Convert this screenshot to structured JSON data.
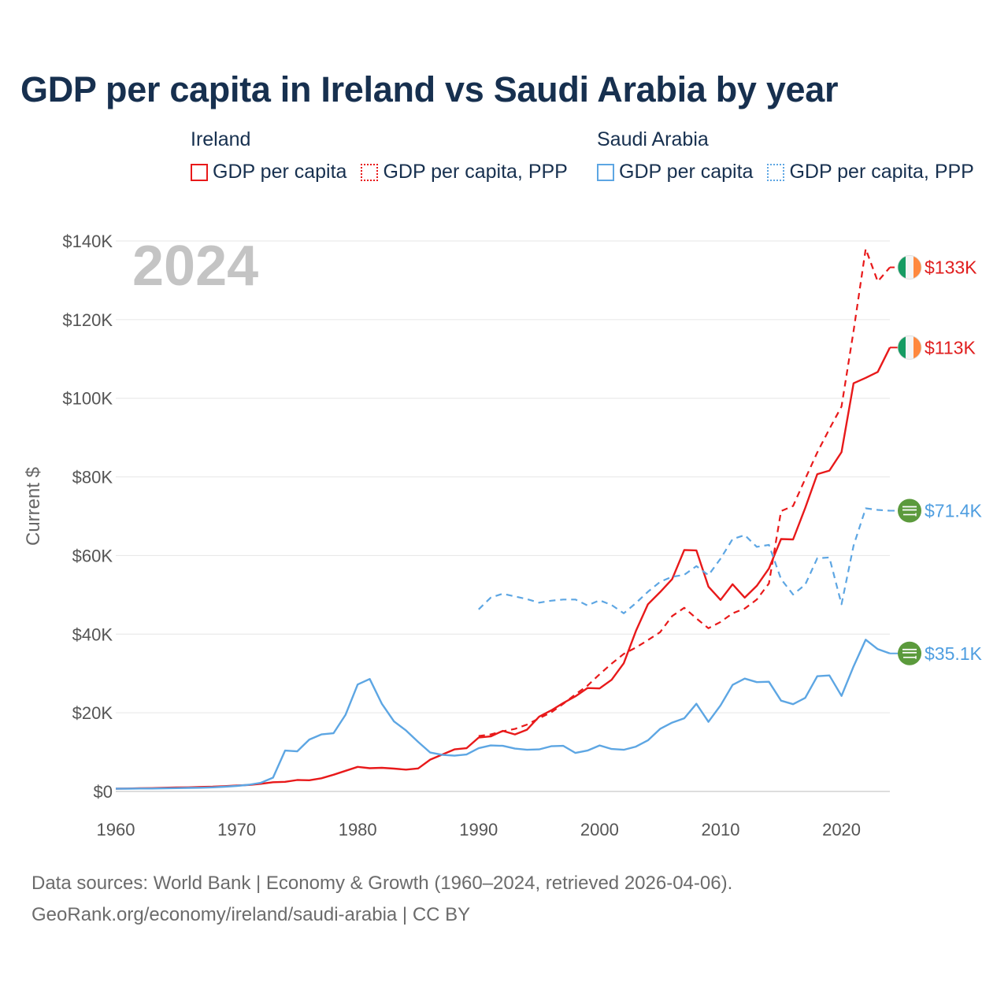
{
  "title": "GDP per capita in Ireland vs Saudi Arabia by year",
  "legend": {
    "groups": [
      {
        "country": "Ireland",
        "items": [
          {
            "label": "GDP per capita",
            "color": "#e8191a",
            "style": "solid"
          },
          {
            "label": "GDP per capita, PPP",
            "color": "#e8191a",
            "style": "dotted"
          }
        ]
      },
      {
        "country": "Saudi Arabia",
        "items": [
          {
            "label": "GDP per capita",
            "color": "#5da6e3",
            "style": "solid"
          },
          {
            "label": "GDP per capita, PPP",
            "color": "#5da6e3",
            "style": "dotted"
          }
        ]
      }
    ]
  },
  "footer": {
    "line1": "Data sources: World Bank | Economy & Growth (1960–2024, retrieved 2026-04-06).",
    "line2": "GeoRank.org/economy/ireland/saudi-arabia | CC BY"
  },
  "chart_data": {
    "type": "line",
    "title": "GDP per capita in Ireland vs Saudi Arabia by year",
    "year_watermark": "2024",
    "ylabel": "Current $",
    "xlabel": "",
    "xlim": [
      1960,
      2024
    ],
    "ylim": [
      0,
      140000
    ],
    "x_ticks": [
      1960,
      1970,
      1980,
      1990,
      2000,
      2010,
      2020
    ],
    "y_ticks": [
      {
        "value": 0,
        "label": "$0"
      },
      {
        "value": 20000,
        "label": "$20K"
      },
      {
        "value": 40000,
        "label": "$40K"
      },
      {
        "value": 60000,
        "label": "$60K"
      },
      {
        "value": 80000,
        "label": "$80K"
      },
      {
        "value": 100000,
        "label": "$100K"
      },
      {
        "value": 120000,
        "label": "$120K"
      },
      {
        "value": 140000,
        "label": "$140K"
      }
    ],
    "grid": true,
    "series": [
      {
        "name": "Ireland GDP per capita",
        "country": "Ireland",
        "color": "#e8191a",
        "dashed": false,
        "end_label": "$113K",
        "flag": "ireland",
        "points": [
          [
            1960,
            700
          ],
          [
            1961,
            750
          ],
          [
            1962,
            800
          ],
          [
            1963,
            850
          ],
          [
            1964,
            950
          ],
          [
            1965,
            1000
          ],
          [
            1966,
            1050
          ],
          [
            1967,
            1150
          ],
          [
            1968,
            1200
          ],
          [
            1969,
            1350
          ],
          [
            1970,
            1500
          ],
          [
            1971,
            1650
          ],
          [
            1972,
            1950
          ],
          [
            1973,
            2350
          ],
          [
            1974,
            2450
          ],
          [
            1975,
            2900
          ],
          [
            1976,
            2850
          ],
          [
            1977,
            3350
          ],
          [
            1978,
            4250
          ],
          [
            1979,
            5250
          ],
          [
            1980,
            6250
          ],
          [
            1981,
            5900
          ],
          [
            1982,
            6000
          ],
          [
            1983,
            5800
          ],
          [
            1984,
            5550
          ],
          [
            1985,
            5850
          ],
          [
            1986,
            8100
          ],
          [
            1987,
            9400
          ],
          [
            1988,
            10700
          ],
          [
            1989,
            11000
          ],
          [
            1990,
            13700
          ],
          [
            1991,
            14000
          ],
          [
            1992,
            15400
          ],
          [
            1993,
            14500
          ],
          [
            1994,
            15700
          ],
          [
            1995,
            19000
          ],
          [
            1996,
            20600
          ],
          [
            1997,
            22500
          ],
          [
            1998,
            24200
          ],
          [
            1999,
            26300
          ],
          [
            2000,
            26200
          ],
          [
            2001,
            28400
          ],
          [
            2002,
            32600
          ],
          [
            2003,
            40800
          ],
          [
            2004,
            47600
          ],
          [
            2005,
            50700
          ],
          [
            2006,
            54000
          ],
          [
            2007,
            61400
          ],
          [
            2008,
            61300
          ],
          [
            2009,
            52100
          ],
          [
            2010,
            48700
          ],
          [
            2011,
            52700
          ],
          [
            2012,
            49300
          ],
          [
            2013,
            52300
          ],
          [
            2014,
            56700
          ],
          [
            2015,
            64200
          ],
          [
            2016,
            64100
          ],
          [
            2017,
            72100
          ],
          [
            2018,
            80700
          ],
          [
            2019,
            81600
          ],
          [
            2020,
            86300
          ],
          [
            2021,
            103800
          ],
          [
            2022,
            105200
          ],
          [
            2023,
            106700
          ],
          [
            2024,
            112900
          ]
        ]
      },
      {
        "name": "Ireland GDP per capita, PPP",
        "country": "Ireland",
        "color": "#e8191a",
        "dashed": true,
        "end_label": "$133K",
        "flag": "ireland",
        "points": [
          [
            1990,
            14100
          ],
          [
            1991,
            14500
          ],
          [
            1992,
            15300
          ],
          [
            1993,
            15900
          ],
          [
            1994,
            17000
          ],
          [
            1995,
            18600
          ],
          [
            1996,
            20100
          ],
          [
            1997,
            22300
          ],
          [
            1998,
            24700
          ],
          [
            1999,
            26900
          ],
          [
            2000,
            29800
          ],
          [
            2001,
            32500
          ],
          [
            2002,
            35000
          ],
          [
            2003,
            36600
          ],
          [
            2004,
            38500
          ],
          [
            2005,
            40500
          ],
          [
            2006,
            44600
          ],
          [
            2007,
            46700
          ],
          [
            2008,
            44000
          ],
          [
            2009,
            41500
          ],
          [
            2010,
            43100
          ],
          [
            2011,
            45300
          ],
          [
            2012,
            46500
          ],
          [
            2013,
            48800
          ],
          [
            2014,
            52900
          ],
          [
            2015,
            71300
          ],
          [
            2016,
            72600
          ],
          [
            2017,
            79500
          ],
          [
            2018,
            86200
          ],
          [
            2019,
            92200
          ],
          [
            2020,
            97900
          ],
          [
            2021,
            117100
          ],
          [
            2022,
            138000
          ],
          [
            2023,
            129700
          ],
          [
            2024,
            133300
          ]
        ]
      },
      {
        "name": "Saudi Arabia GDP per capita",
        "country": "Saudi Arabia",
        "color": "#5da6e3",
        "dashed": false,
        "end_label": "$35.1K",
        "flag": "saudi",
        "points": [
          [
            1960,
            700
          ],
          [
            1961,
            700
          ],
          [
            1962,
            750
          ],
          [
            1963,
            750
          ],
          [
            1964,
            800
          ],
          [
            1965,
            850
          ],
          [
            1966,
            900
          ],
          [
            1967,
            950
          ],
          [
            1968,
            1050
          ],
          [
            1969,
            1200
          ],
          [
            1970,
            1400
          ],
          [
            1971,
            1700
          ],
          [
            1972,
            2200
          ],
          [
            1973,
            3500
          ],
          [
            1974,
            10400
          ],
          [
            1975,
            10200
          ],
          [
            1976,
            13200
          ],
          [
            1977,
            14500
          ],
          [
            1978,
            14800
          ],
          [
            1979,
            19500
          ],
          [
            1980,
            27200
          ],
          [
            1981,
            28600
          ],
          [
            1982,
            22300
          ],
          [
            1983,
            17800
          ],
          [
            1984,
            15500
          ],
          [
            1985,
            12600
          ],
          [
            1986,
            9900
          ],
          [
            1987,
            9300
          ],
          [
            1988,
            9100
          ],
          [
            1989,
            9400
          ],
          [
            1990,
            11000
          ],
          [
            1991,
            11700
          ],
          [
            1992,
            11600
          ],
          [
            1993,
            10900
          ],
          [
            1994,
            10600
          ],
          [
            1995,
            10700
          ],
          [
            1996,
            11500
          ],
          [
            1997,
            11600
          ],
          [
            1998,
            9800
          ],
          [
            1999,
            10400
          ],
          [
            2000,
            11700
          ],
          [
            2001,
            10800
          ],
          [
            2002,
            10600
          ],
          [
            2003,
            11400
          ],
          [
            2004,
            13000
          ],
          [
            2005,
            15900
          ],
          [
            2006,
            17500
          ],
          [
            2007,
            18600
          ],
          [
            2008,
            22300
          ],
          [
            2009,
            17700
          ],
          [
            2010,
            21900
          ],
          [
            2011,
            27100
          ],
          [
            2012,
            28700
          ],
          [
            2013,
            27800
          ],
          [
            2014,
            27900
          ],
          [
            2015,
            23100
          ],
          [
            2016,
            22200
          ],
          [
            2017,
            23800
          ],
          [
            2018,
            29300
          ],
          [
            2019,
            29500
          ],
          [
            2020,
            24300
          ],
          [
            2021,
            31800
          ],
          [
            2022,
            38600
          ],
          [
            2023,
            36200
          ],
          [
            2024,
            35100
          ]
        ]
      },
      {
        "name": "Saudi Arabia GDP per capita, PPP",
        "country": "Saudi Arabia",
        "color": "#5da6e3",
        "dashed": true,
        "end_label": "$71.4K",
        "flag": "saudi",
        "points": [
          [
            1990,
            46300
          ],
          [
            1991,
            49300
          ],
          [
            1992,
            50300
          ],
          [
            1993,
            49600
          ],
          [
            1994,
            48900
          ],
          [
            1995,
            48000
          ],
          [
            1996,
            48500
          ],
          [
            1997,
            48800
          ],
          [
            1998,
            48800
          ],
          [
            1999,
            47300
          ],
          [
            2000,
            48600
          ],
          [
            2001,
            47400
          ],
          [
            2002,
            45300
          ],
          [
            2003,
            47900
          ],
          [
            2004,
            50800
          ],
          [
            2005,
            53300
          ],
          [
            2006,
            54600
          ],
          [
            2007,
            55100
          ],
          [
            2008,
            57300
          ],
          [
            2009,
            55000
          ],
          [
            2010,
            59200
          ],
          [
            2011,
            64200
          ],
          [
            2012,
            65200
          ],
          [
            2013,
            62200
          ],
          [
            2014,
            62700
          ],
          [
            2015,
            54000
          ],
          [
            2016,
            50100
          ],
          [
            2017,
            52600
          ],
          [
            2018,
            59300
          ],
          [
            2019,
            59500
          ],
          [
            2020,
            47600
          ],
          [
            2021,
            62500
          ],
          [
            2022,
            72000
          ],
          [
            2023,
            71600
          ],
          [
            2024,
            71400
          ]
        ]
      }
    ]
  }
}
